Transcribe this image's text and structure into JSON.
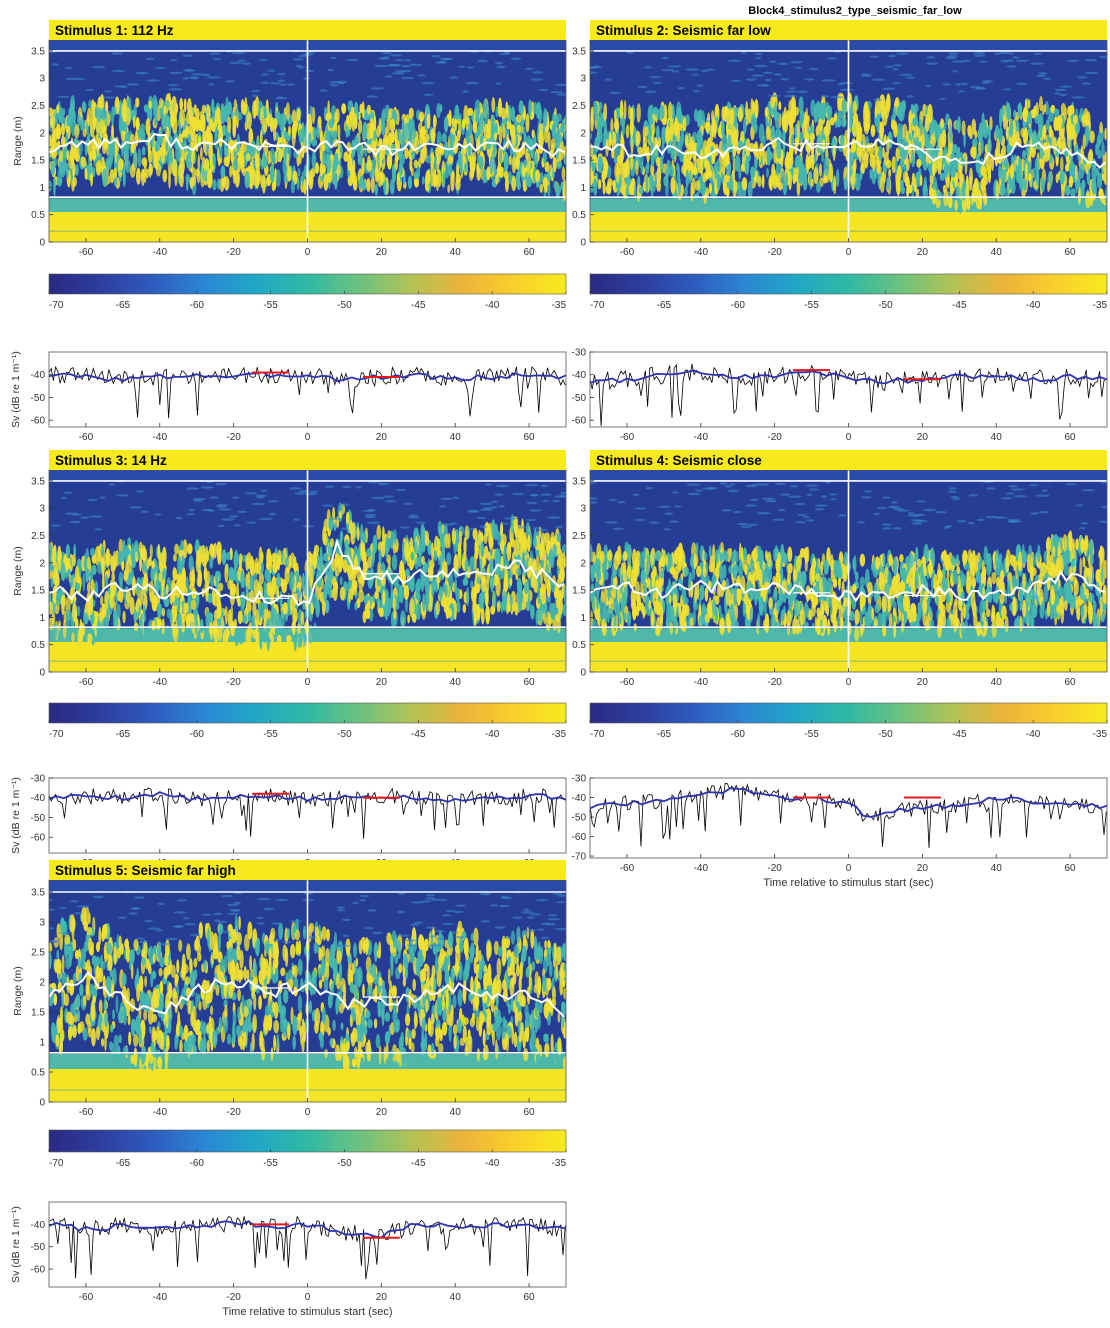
{
  "figure_title": "Block4_stimulus2_type_seismic_far_low",
  "colors": {
    "background": "#263d96",
    "speckle_high": "#f0e032",
    "speckle_low": "#45b8b0",
    "range_line": "#ffffff",
    "sv_raw": "#000000",
    "sv_smooth": "#2b35b0",
    "sv_mean": "#e81919",
    "frame": "#555555"
  },
  "colormap": [
    "#2a2a82",
    "#2d3e9e",
    "#2f5bbf",
    "#2c86d4",
    "#21a7c6",
    "#30b9a4",
    "#6cc27f",
    "#b2c256",
    "#ecb33a",
    "#f9cf2c",
    "#f7ea1c"
  ],
  "chart_data": [
    {
      "type": "heatmap",
      "title": "Stimulus 1: 112 Hz",
      "xlabel": "",
      "ylabel": "Range (m)",
      "xlim": [
        -70,
        70
      ],
      "ylim": [
        0,
        3.7
      ],
      "xticks": [
        -60,
        -40,
        -20,
        0,
        20,
        40,
        60
      ],
      "yticks": [
        0,
        0.5,
        1,
        1.5,
        2,
        2.5,
        3,
        3.5
      ],
      "stimulus_start": 0,
      "lines": [
        3.5,
        0.82
      ],
      "band": [
        1.2,
        2.6
      ],
      "mean_range_track": {
        "x": [
          -70,
          -60,
          -50,
          -40,
          -30,
          -20,
          -10,
          0,
          10,
          20,
          30,
          40,
          50,
          60,
          70
        ],
        "y": [
          1.7,
          1.85,
          1.8,
          1.9,
          1.75,
          1.8,
          1.75,
          1.7,
          1.8,
          1.65,
          1.75,
          1.7,
          1.8,
          1.75,
          1.55
        ]
      },
      "pre_mean": {
        "x": [
          -15,
          -5
        ],
        "y": 1.75
      },
      "post_mean": {
        "x": [
          15,
          25
        ],
        "y": 1.7
      },
      "colorbar": {
        "ticks": [
          -70,
          -65,
          -60,
          -55,
          -50,
          -45,
          -40,
          -35
        ],
        "range": [
          -70,
          -35
        ]
      }
    },
    {
      "type": "line",
      "title": "",
      "xlabel": "",
      "ylabel": "Sv (dB re 1 m⁻¹)",
      "xlim": [
        -70,
        70
      ],
      "ylim": [
        -63,
        -30
      ],
      "yticks": [
        -40,
        -50,
        -60
      ],
      "xticks": [
        -60,
        -40,
        -20,
        0,
        20,
        40,
        60
      ],
      "smoothed": {
        "x": [
          -70,
          -60,
          -50,
          -40,
          -30,
          -20,
          -10,
          0,
          10,
          20,
          30,
          40,
          50,
          60,
          70
        ],
        "y": [
          -40,
          -41,
          -42,
          -41,
          -40,
          -41,
          -40,
          -40,
          -42,
          -41,
          -40,
          -42,
          -41,
          -40,
          -41
        ]
      },
      "pre_mean": {
        "x": [
          -15,
          -5
        ],
        "y": -39
      },
      "post_mean": {
        "x": [
          15,
          25
        ],
        "y": -41
      }
    },
    {
      "type": "heatmap",
      "title": "Stimulus 2: Seismic far low",
      "xlabel": "",
      "ylabel": "",
      "xlim": [
        -70,
        70
      ],
      "ylim": [
        0,
        3.7
      ],
      "xticks": [
        -60,
        -40,
        -20,
        0,
        20,
        40,
        60
      ],
      "yticks": [
        0,
        0.5,
        1,
        1.5,
        2,
        2.5,
        3,
        3.5
      ],
      "stimulus_start": 0,
      "lines": [
        3.5,
        0.82
      ],
      "band": [
        1.1,
        2.6
      ],
      "mean_range_track": {
        "x": [
          -70,
          -60,
          -50,
          -40,
          -30,
          -20,
          -10,
          0,
          10,
          20,
          30,
          40,
          50,
          60,
          70
        ],
        "y": [
          1.8,
          1.65,
          1.7,
          1.55,
          1.7,
          1.8,
          1.75,
          1.85,
          1.8,
          1.65,
          1.4,
          1.6,
          1.8,
          1.7,
          1.4
        ]
      },
      "pre_mean": {
        "x": [
          -15,
          -5
        ],
        "y": 1.8
      },
      "post_mean": {
        "x": [
          15,
          25
        ],
        "y": 1.7
      },
      "colorbar": {
        "ticks": [
          -70,
          -65,
          -60,
          -55,
          -50,
          -45,
          -40,
          -35
        ],
        "range": [
          -70,
          -35
        ]
      }
    },
    {
      "type": "line",
      "title": "",
      "xlabel": "",
      "ylabel": "",
      "xlim": [
        -70,
        70
      ],
      "ylim": [
        -63,
        -30
      ],
      "yticks": [
        -30,
        -40,
        -50,
        -60
      ],
      "xticks": [
        -60,
        -40,
        -20,
        0,
        20,
        40,
        60
      ],
      "smoothed": {
        "x": [
          -70,
          -60,
          -50,
          -40,
          -30,
          -20,
          -10,
          0,
          10,
          20,
          30,
          40,
          50,
          60,
          70
        ],
        "y": [
          -43,
          -42,
          -40,
          -39,
          -41,
          -40,
          -39,
          -41,
          -43,
          -42,
          -41,
          -40,
          -42,
          -41,
          -42
        ]
      },
      "pre_mean": {
        "x": [
          -15,
          -5
        ],
        "y": -38
      },
      "post_mean": {
        "x": [
          15,
          25
        ],
        "y": -42
      }
    },
    {
      "type": "heatmap",
      "title": "Stimulus 3: 14 Hz",
      "xlabel": "",
      "ylabel": "Range (m)",
      "xlim": [
        -70,
        70
      ],
      "ylim": [
        0,
        3.7
      ],
      "xticks": [
        -60,
        -40,
        -20,
        0,
        20,
        40,
        60
      ],
      "yticks": [
        0,
        0.5,
        1,
        1.5,
        2,
        2.5,
        3,
        3.5
      ],
      "stimulus_start": 0,
      "lines": [
        3.5,
        0.82
      ],
      "band": [
        0.95,
        2.5
      ],
      "mean_range_track": {
        "x": [
          -70,
          -60,
          -50,
          -40,
          -30,
          -20,
          -10,
          0,
          8,
          15,
          25,
          35,
          45,
          55,
          70
        ],
        "y": [
          1.5,
          1.4,
          1.6,
          1.45,
          1.5,
          1.4,
          1.35,
          1.3,
          2.3,
          1.8,
          1.7,
          1.85,
          1.75,
          2.0,
          1.6
        ]
      },
      "pre_mean": {
        "x": [
          -15,
          -5
        ],
        "y": 1.35
      },
      "post_mean": {
        "x": [
          15,
          25
        ],
        "y": 1.8
      },
      "colorbar": {
        "ticks": [
          -70,
          -65,
          -60,
          -55,
          -50,
          -45,
          -40,
          -35
        ],
        "range": [
          -70,
          -35
        ]
      }
    },
    {
      "type": "line",
      "title": "",
      "xlabel": "",
      "ylabel": "Sv (dB re 1 m⁻¹)",
      "xlim": [
        -70,
        70
      ],
      "ylim": [
        -68,
        -30
      ],
      "yticks": [
        -30,
        -40,
        -50,
        -60
      ],
      "xticks": [
        -60,
        -40,
        -20,
        0,
        20,
        40,
        60
      ],
      "smoothed": {
        "x": [
          -70,
          -60,
          -50,
          -40,
          -30,
          -20,
          -10,
          0,
          10,
          20,
          30,
          40,
          50,
          60,
          70
        ],
        "y": [
          -40,
          -39,
          -40,
          -38,
          -41,
          -40,
          -39,
          -41,
          -40,
          -39,
          -40,
          -41,
          -40,
          -39,
          -40
        ]
      },
      "pre_mean": {
        "x": [
          -15,
          -5
        ],
        "y": -38
      },
      "post_mean": {
        "x": [
          15,
          25
        ],
        "y": -40
      }
    },
    {
      "type": "heatmap",
      "title": "Stimulus 4: Seismic close",
      "xlabel": "",
      "ylabel": "",
      "xlim": [
        -70,
        70
      ],
      "ylim": [
        0,
        3.7
      ],
      "xticks": [
        -60,
        -40,
        -20,
        0,
        20,
        40,
        60
      ],
      "yticks": [
        0,
        0.5,
        1,
        1.5,
        2,
        2.5,
        3,
        3.5
      ],
      "stimulus_start": 0,
      "lines": [
        3.5,
        0.82
      ],
      "band": [
        0.95,
        2.3
      ],
      "mean_range_track": {
        "x": [
          -70,
          -60,
          -50,
          -40,
          -30,
          -20,
          -10,
          0,
          10,
          20,
          30,
          40,
          50,
          60,
          70
        ],
        "y": [
          1.5,
          1.55,
          1.45,
          1.6,
          1.5,
          1.55,
          1.45,
          1.4,
          1.35,
          1.5,
          1.4,
          1.45,
          1.55,
          1.8,
          1.5
        ]
      },
      "pre_mean": {
        "x": [
          -15,
          -5
        ],
        "y": 1.45
      },
      "post_mean": {
        "x": [
          15,
          25
        ],
        "y": 1.4
      },
      "colorbar": {
        "ticks": [
          -70,
          -65,
          -60,
          -55,
          -50,
          -45,
          -40,
          -35
        ],
        "range": [
          -70,
          -35
        ]
      }
    },
    {
      "type": "line",
      "title": "",
      "xlabel": "Time relative to stimulus start (sec)",
      "ylabel": "",
      "xlim": [
        -70,
        70
      ],
      "ylim": [
        -71,
        -30
      ],
      "yticks": [
        -30,
        -40,
        -50,
        -60,
        -70
      ],
      "xticks": [
        -60,
        -40,
        -20,
        0,
        20,
        40,
        60
      ],
      "smoothed": {
        "x": [
          -70,
          -60,
          -50,
          -40,
          -30,
          -20,
          -10,
          0,
          5,
          10,
          20,
          30,
          40,
          50,
          60,
          70
        ],
        "y": [
          -45,
          -43,
          -42,
          -38,
          -36,
          -40,
          -41,
          -42,
          -50,
          -48,
          -45,
          -44,
          -40,
          -42,
          -43,
          -45
        ]
      },
      "pre_mean": {
        "x": [
          -15,
          -5
        ],
        "y": -40
      },
      "post_mean": {
        "x": [
          15,
          25
        ],
        "y": -40
      },
      "colorbar": null
    },
    {
      "type": "heatmap",
      "title": "Stimulus 5: Seismic far high",
      "xlabel": "",
      "ylabel": "Range (m)",
      "xlim": [
        -70,
        70
      ],
      "ylim": [
        0,
        3.7
      ],
      "xticks": [
        -60,
        -40,
        -20,
        0,
        20,
        40,
        60
      ],
      "yticks": [
        0,
        0.5,
        1,
        1.5,
        2,
        2.5,
        3,
        3.5
      ],
      "stimulus_start": 0,
      "lines": [
        3.5,
        0.82
      ],
      "band": [
        0.95,
        2.9
      ],
      "mean_range_track": {
        "x": [
          -70,
          -60,
          -50,
          -40,
          -30,
          -20,
          -10,
          0,
          10,
          20,
          30,
          40,
          50,
          60,
          70
        ],
        "y": [
          1.8,
          2.1,
          1.7,
          1.5,
          1.9,
          2.0,
          1.8,
          2.0,
          1.6,
          1.7,
          1.75,
          1.9,
          1.7,
          1.8,
          1.5
        ]
      },
      "pre_mean": {
        "x": [
          -15,
          -5
        ],
        "y": 1.9
      },
      "post_mean": {
        "x": [
          15,
          25
        ],
        "y": 1.75
      },
      "colorbar": {
        "ticks": [
          -70,
          -65,
          -60,
          -55,
          -50,
          -45,
          -40,
          -35
        ],
        "range": [
          -70,
          -35
        ]
      }
    },
    {
      "type": "line",
      "title": "",
      "xlabel": "Time relative to stimulus start (sec)",
      "ylabel": "Sv (dB re 1 m⁻¹)",
      "xlim": [
        -70,
        70
      ],
      "ylim": [
        -68,
        -30
      ],
      "yticks": [
        -40,
        -50,
        -60
      ],
      "xticks": [
        -60,
        -40,
        -20,
        0,
        20,
        40,
        60
      ],
      "smoothed": {
        "x": [
          -70,
          -60,
          -50,
          -40,
          -30,
          -20,
          -10,
          0,
          10,
          20,
          30,
          40,
          50,
          60,
          70
        ],
        "y": [
          -40,
          -42,
          -41,
          -42,
          -41,
          -39,
          -41,
          -40,
          -44,
          -45,
          -40,
          -41,
          -40,
          -41,
          -42
        ]
      },
      "pre_mean": {
        "x": [
          -15,
          -5
        ],
        "y": -40
      },
      "post_mean": {
        "x": [
          15,
          25
        ],
        "y": -46
      }
    }
  ]
}
